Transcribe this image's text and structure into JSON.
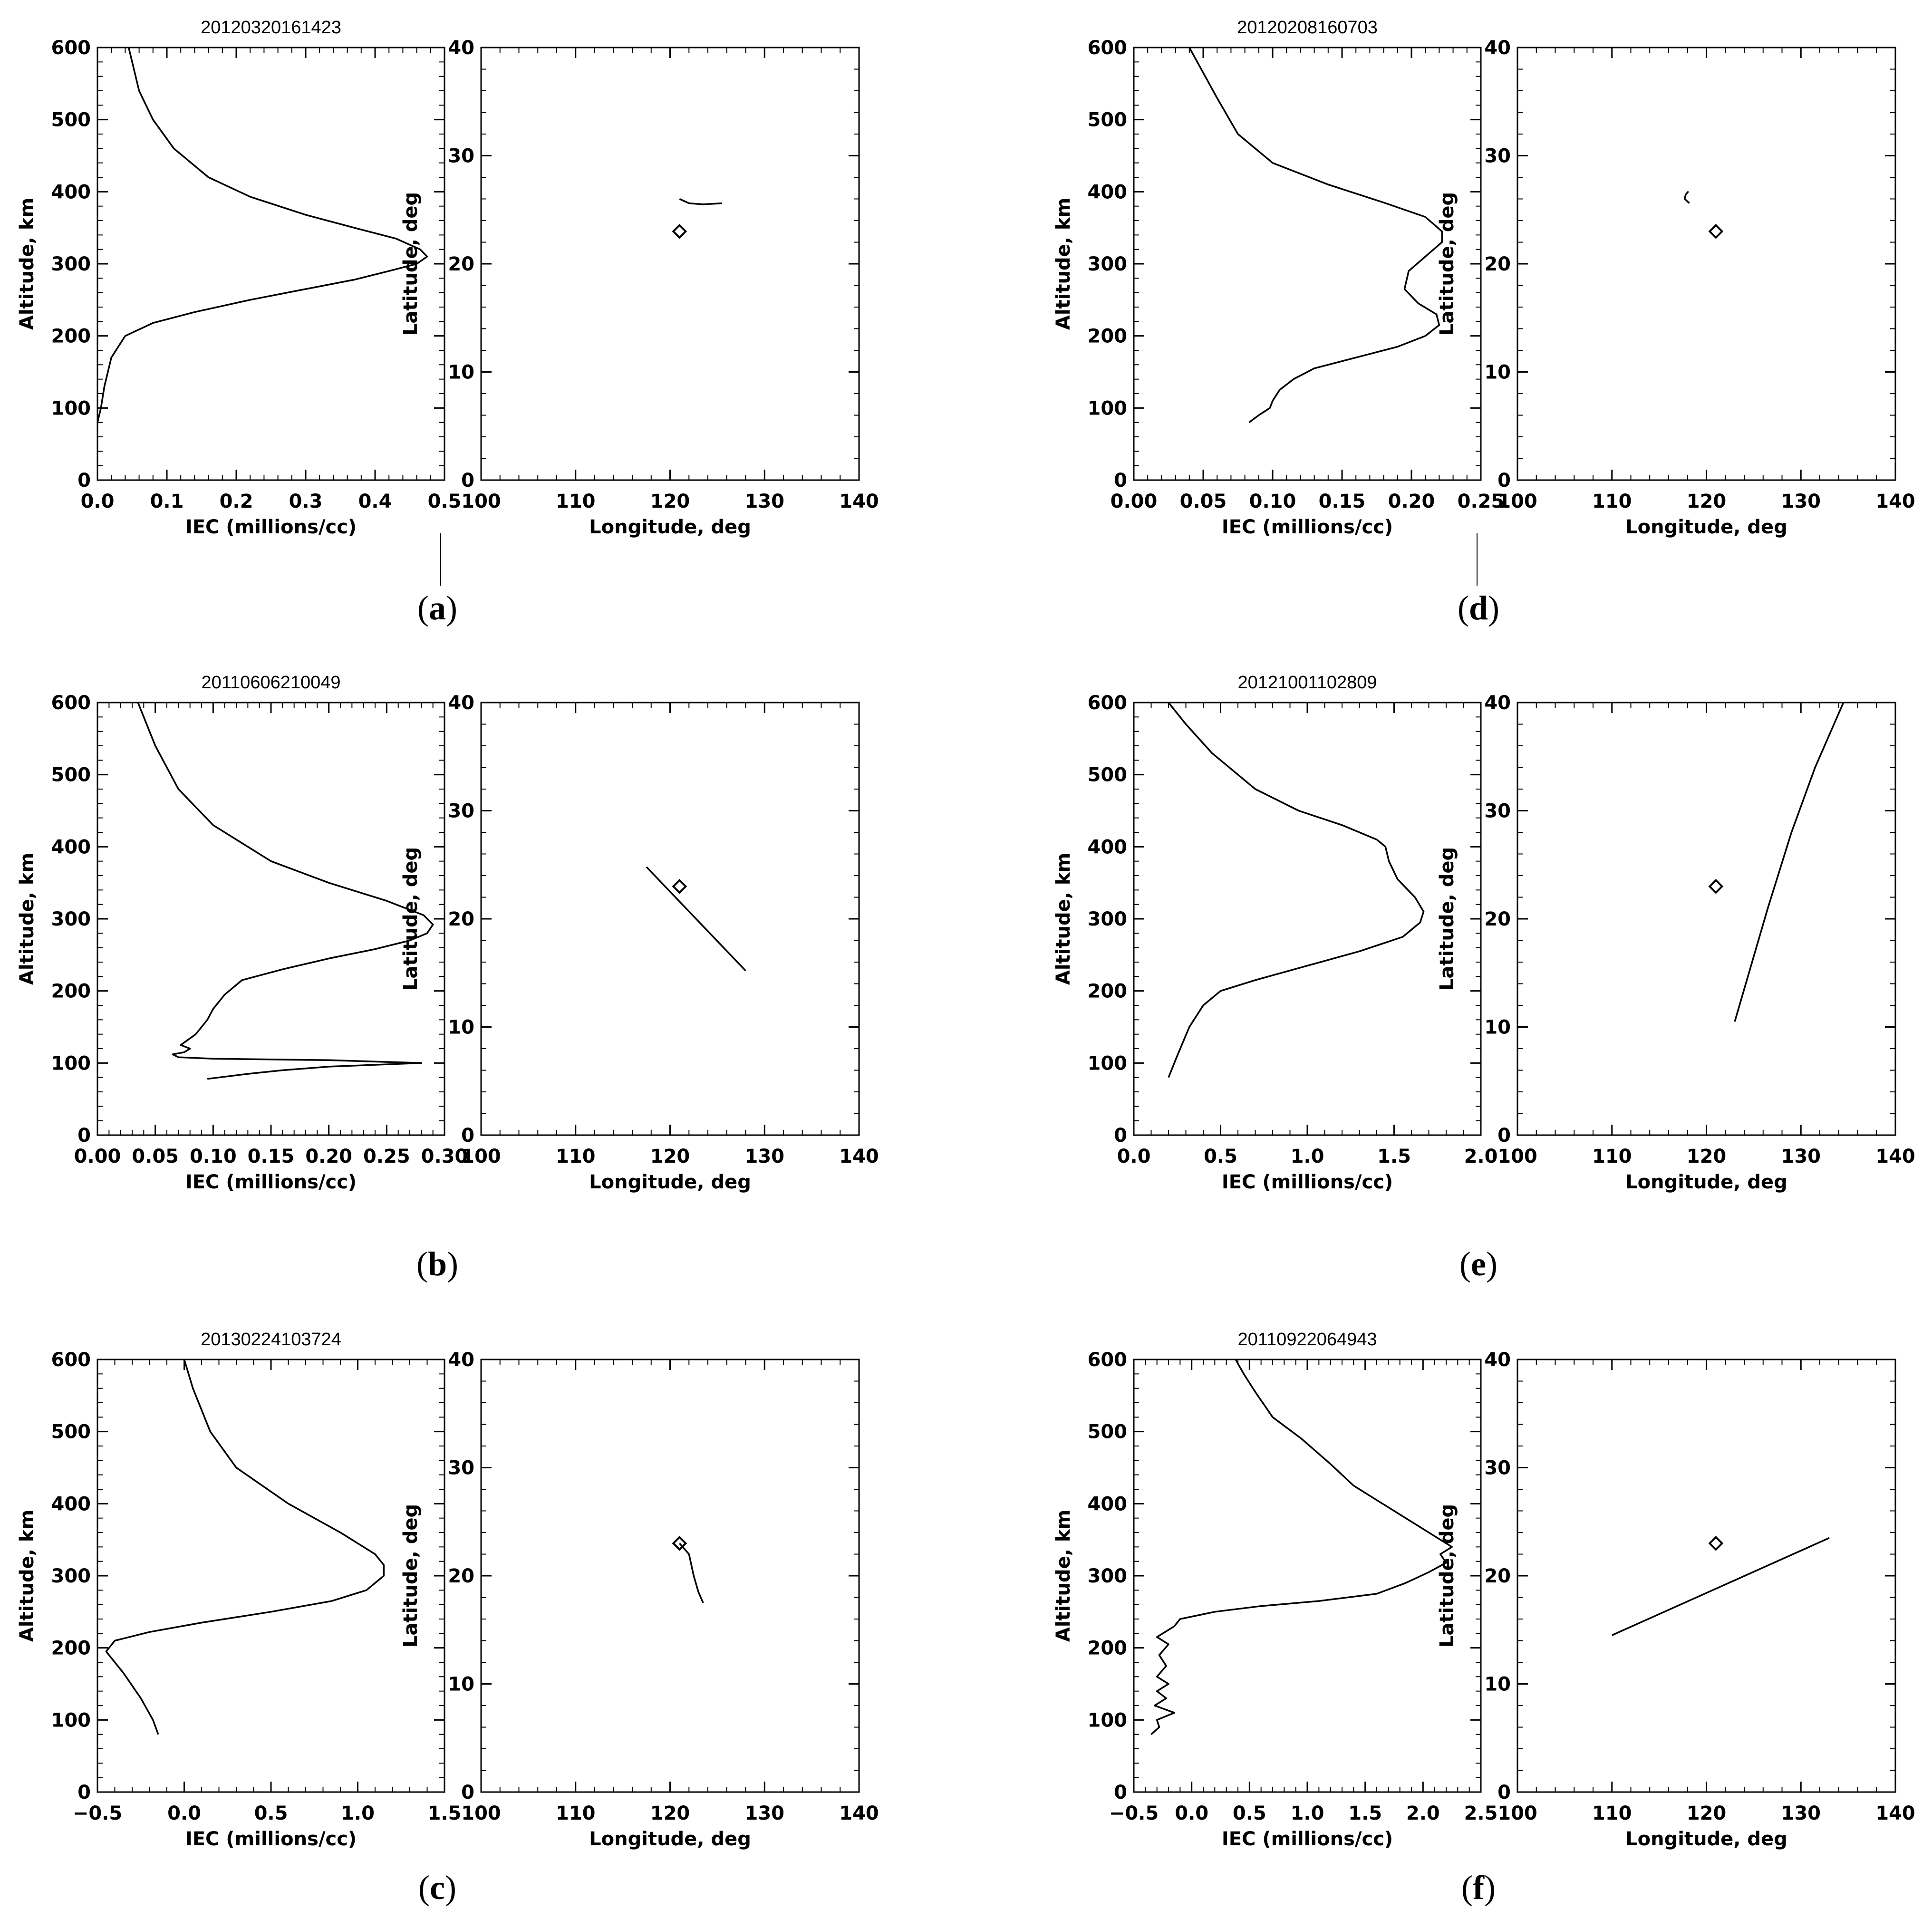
{
  "chart_data": [
    {
      "panel": "a",
      "type": "line",
      "title": "20120320161423",
      "profile": {
        "xlabel": "IEC (millions/cc)",
        "ylabel": "Altitude, km",
        "xlim": [
          0,
          0.5
        ],
        "ylim": [
          0,
          600
        ],
        "xticks": [
          "0.0",
          "0.1",
          "0.2",
          "0.3",
          "0.4",
          "0.5"
        ],
        "yticks": [
          "0",
          "100",
          "200",
          "300",
          "400",
          "500",
          "600"
        ],
        "points": [
          [
            0.0,
            80
          ],
          [
            0.005,
            100
          ],
          [
            0.01,
            130
          ],
          [
            0.02,
            170
          ],
          [
            0.04,
            200
          ],
          [
            0.08,
            218
          ],
          [
            0.14,
            233
          ],
          [
            0.22,
            250
          ],
          [
            0.3,
            265
          ],
          [
            0.37,
            278
          ],
          [
            0.42,
            290
          ],
          [
            0.46,
            300
          ],
          [
            0.475,
            310
          ],
          [
            0.465,
            320
          ],
          [
            0.43,
            335
          ],
          [
            0.37,
            350
          ],
          [
            0.3,
            368
          ],
          [
            0.22,
            393
          ],
          [
            0.16,
            420
          ],
          [
            0.11,
            460
          ],
          [
            0.08,
            500
          ],
          [
            0.06,
            540
          ],
          [
            0.045,
            600
          ]
        ]
      },
      "track": {
        "xlabel": "Longitude, deg",
        "ylabel": "Latitude, deg",
        "xlim": [
          100,
          140
        ],
        "ylim": [
          0,
          40
        ],
        "xticks": [
          "100",
          "110",
          "120",
          "130",
          "140"
        ],
        "yticks": [
          "0",
          "10",
          "20",
          "30",
          "40"
        ],
        "path": [
          [
            121,
            26
          ],
          [
            122,
            25.6
          ],
          [
            123.5,
            25.5
          ],
          [
            125.5,
            25.6
          ]
        ],
        "station": [
          121,
          23
        ]
      }
    },
    {
      "panel": "b",
      "type": "line",
      "title": "20110606210049",
      "profile": {
        "xlabel": "IEC (millions/cc)",
        "ylabel": "Altitude, km",
        "xlim": [
          0,
          0.3
        ],
        "ylim": [
          0,
          600
        ],
        "xticks": [
          "0.00",
          "0.05",
          "0.10",
          "0.15",
          "0.20",
          "0.25",
          "0.30"
        ],
        "yticks": [
          "0",
          "100",
          "200",
          "300",
          "400",
          "500",
          "600"
        ],
        "points": [
          [
            0.095,
            78
          ],
          [
            0.13,
            85
          ],
          [
            0.16,
            90
          ],
          [
            0.2,
            95
          ],
          [
            0.28,
            100
          ],
          [
            0.2,
            104
          ],
          [
            0.1,
            106
          ],
          [
            0.07,
            108
          ],
          [
            0.065,
            112
          ],
          [
            0.075,
            115
          ],
          [
            0.08,
            120
          ],
          [
            0.072,
            125
          ],
          [
            0.085,
            140
          ],
          [
            0.095,
            160
          ],
          [
            0.1,
            175
          ],
          [
            0.11,
            195
          ],
          [
            0.125,
            215
          ],
          [
            0.16,
            230
          ],
          [
            0.2,
            245
          ],
          [
            0.24,
            258
          ],
          [
            0.27,
            270
          ],
          [
            0.285,
            280
          ],
          [
            0.29,
            292
          ],
          [
            0.282,
            305
          ],
          [
            0.25,
            325
          ],
          [
            0.2,
            350
          ],
          [
            0.15,
            380
          ],
          [
            0.1,
            430
          ],
          [
            0.07,
            480
          ],
          [
            0.05,
            540
          ],
          [
            0.035,
            600
          ]
        ]
      },
      "track": {
        "xlabel": "Longitude, deg",
        "ylabel": "Latitude, deg",
        "xlim": [
          100,
          140
        ],
        "ylim": [
          0,
          40
        ],
        "xticks": [
          "100",
          "110",
          "120",
          "130",
          "140"
        ],
        "yticks": [
          "0",
          "10",
          "20",
          "30",
          "40"
        ],
        "path": [
          [
            117.5,
            24.8
          ],
          [
            128,
            15.2
          ]
        ],
        "station": [
          121,
          23
        ]
      }
    },
    {
      "panel": "c",
      "type": "line",
      "title": "20130224103724",
      "profile": {
        "xlabel": "IEC (millions/cc)",
        "ylabel": "Altitude, km",
        "xlim": [
          -0.5,
          1.5
        ],
        "ylim": [
          0,
          600
        ],
        "xticks": [
          "−0.5",
          "0.0",
          "0.5",
          "1.0",
          "1.5"
        ],
        "yticks": [
          "0",
          "100",
          "200",
          "300",
          "400",
          "500",
          "600"
        ],
        "points": [
          [
            -0.15,
            80
          ],
          [
            -0.18,
            100
          ],
          [
            -0.25,
            130
          ],
          [
            -0.35,
            165
          ],
          [
            -0.45,
            195
          ],
          [
            -0.4,
            210
          ],
          [
            -0.2,
            222
          ],
          [
            0.1,
            235
          ],
          [
            0.5,
            250
          ],
          [
            0.85,
            265
          ],
          [
            1.05,
            280
          ],
          [
            1.15,
            300
          ],
          [
            1.15,
            315
          ],
          [
            1.1,
            330
          ],
          [
            0.9,
            360
          ],
          [
            0.6,
            400
          ],
          [
            0.3,
            450
          ],
          [
            0.15,
            500
          ],
          [
            0.05,
            560
          ],
          [
            0.0,
            600
          ]
        ]
      },
      "track": {
        "xlabel": "Longitude, deg",
        "ylabel": "Latitude, deg",
        "xlim": [
          100,
          140
        ],
        "ylim": [
          0,
          40
        ],
        "xticks": [
          "100",
          "110",
          "120",
          "130",
          "140"
        ],
        "yticks": [
          "0",
          "10",
          "20",
          "30",
          "40"
        ],
        "path": [
          [
            121,
            23
          ],
          [
            122,
            22
          ],
          [
            122.5,
            20
          ],
          [
            123,
            18.5
          ],
          [
            123.5,
            17.5
          ]
        ],
        "station": [
          121,
          23
        ]
      }
    },
    {
      "panel": "d",
      "type": "line",
      "title": "20120208160703",
      "profile": {
        "xlabel": "IEC (millions/cc)",
        "ylabel": "Altitude, km",
        "xlim": [
          0,
          0.25
        ],
        "ylim": [
          0,
          600
        ],
        "xticks": [
          "0.00",
          "0.05",
          "0.10",
          "0.15",
          "0.20",
          "0.25"
        ],
        "yticks": [
          "0",
          "100",
          "200",
          "300",
          "400",
          "500",
          "600"
        ],
        "points": [
          [
            0.083,
            80
          ],
          [
            0.09,
            90
          ],
          [
            0.098,
            100
          ],
          [
            0.1,
            110
          ],
          [
            0.105,
            125
          ],
          [
            0.115,
            140
          ],
          [
            0.13,
            155
          ],
          [
            0.16,
            170
          ],
          [
            0.19,
            185
          ],
          [
            0.21,
            200
          ],
          [
            0.22,
            215
          ],
          [
            0.218,
            230
          ],
          [
            0.205,
            245
          ],
          [
            0.195,
            265
          ],
          [
            0.198,
            290
          ],
          [
            0.21,
            310
          ],
          [
            0.222,
            330
          ],
          [
            0.222,
            345
          ],
          [
            0.21,
            365
          ],
          [
            0.18,
            385
          ],
          [
            0.14,
            410
          ],
          [
            0.1,
            440
          ],
          [
            0.075,
            480
          ],
          [
            0.06,
            530
          ],
          [
            0.04,
            600
          ]
        ]
      },
      "track": {
        "xlabel": "Longitude, deg",
        "ylabel": "Latitude, deg",
        "xlim": [
          100,
          140
        ],
        "ylim": [
          0,
          40
        ],
        "xticks": [
          "100",
          "110",
          "120",
          "130",
          "140"
        ],
        "yticks": [
          "0",
          "10",
          "20",
          "30",
          "40"
        ],
        "path": [
          [
            118.2,
            25.6
          ],
          [
            117.7,
            26
          ],
          [
            117.8,
            26.4
          ],
          [
            118.1,
            26.7
          ]
        ],
        "station": [
          121,
          23
        ]
      }
    },
    {
      "panel": "e",
      "type": "line",
      "title": "20121001102809",
      "profile": {
        "xlabel": "IEC (millions/cc)",
        "ylabel": "Altitude, km",
        "xlim": [
          0,
          2.0
        ],
        "ylim": [
          0,
          600
        ],
        "xticks": [
          "0.0",
          "0.5",
          "1.0",
          "1.5",
          "2.0"
        ],
        "yticks": [
          "0",
          "100",
          "200",
          "300",
          "400",
          "500",
          "600"
        ],
        "points": [
          [
            0.2,
            80
          ],
          [
            0.25,
            110
          ],
          [
            0.32,
            150
          ],
          [
            0.4,
            180
          ],
          [
            0.5,
            200
          ],
          [
            0.7,
            215
          ],
          [
            1.0,
            235
          ],
          [
            1.3,
            255
          ],
          [
            1.55,
            275
          ],
          [
            1.65,
            295
          ],
          [
            1.67,
            310
          ],
          [
            1.62,
            330
          ],
          [
            1.52,
            355
          ],
          [
            1.47,
            380
          ],
          [
            1.45,
            400
          ],
          [
            1.4,
            410
          ],
          [
            1.2,
            430
          ],
          [
            0.95,
            450
          ],
          [
            0.7,
            480
          ],
          [
            0.45,
            530
          ],
          [
            0.3,
            570
          ],
          [
            0.2,
            600
          ]
        ]
      },
      "track": {
        "xlabel": "Longitude, deg",
        "ylabel": "Latitude, deg",
        "xlim": [
          100,
          140
        ],
        "ylim": [
          0,
          40
        ],
        "xticks": [
          "100",
          "110",
          "120",
          "130",
          "140"
        ],
        "yticks": [
          "0",
          "10",
          "20",
          "30",
          "40"
        ],
        "path": [
          [
            123,
            10.5
          ],
          [
            124.5,
            15
          ],
          [
            126.5,
            21
          ],
          [
            129,
            28
          ],
          [
            131.5,
            34
          ],
          [
            134.5,
            40
          ]
        ],
        "station": [
          121,
          23
        ]
      }
    },
    {
      "panel": "f",
      "type": "line",
      "title": "20110922064943",
      "profile": {
        "xlabel": "IEC (millions/cc)",
        "ylabel": "Altitude, km",
        "xlim": [
          -0.5,
          2.5
        ],
        "ylim": [
          0,
          600
        ],
        "xticks": [
          "−0.5",
          "0.0",
          "0.5",
          "1.0",
          "1.5",
          "2.0",
          "2.5"
        ],
        "yticks": [
          "0",
          "100",
          "200",
          "300",
          "400",
          "500",
          "600"
        ],
        "points": [
          [
            -0.35,
            80
          ],
          [
            -0.28,
            90
          ],
          [
            -0.3,
            100
          ],
          [
            -0.15,
            110
          ],
          [
            -0.32,
            120
          ],
          [
            -0.22,
            130
          ],
          [
            -0.3,
            140
          ],
          [
            -0.2,
            150
          ],
          [
            -0.3,
            160
          ],
          [
            -0.22,
            175
          ],
          [
            -0.28,
            190
          ],
          [
            -0.2,
            205
          ],
          [
            -0.3,
            215
          ],
          [
            -0.15,
            230
          ],
          [
            -0.1,
            240
          ],
          [
            0.2,
            250
          ],
          [
            0.6,
            258
          ],
          [
            1.1,
            265
          ],
          [
            1.6,
            275
          ],
          [
            1.85,
            290
          ],
          [
            2.05,
            305
          ],
          [
            2.2,
            318
          ],
          [
            2.15,
            330
          ],
          [
            2.25,
            340
          ],
          [
            2.1,
            355
          ],
          [
            2.0,
            365
          ],
          [
            1.8,
            385
          ],
          [
            1.6,
            405
          ],
          [
            1.4,
            425
          ],
          [
            1.2,
            455
          ],
          [
            0.95,
            490
          ],
          [
            0.7,
            520
          ],
          [
            0.55,
            555
          ],
          [
            0.45,
            580
          ],
          [
            0.38,
            600
          ]
        ]
      },
      "track": {
        "xlabel": "Longitude, deg",
        "ylabel": "Latitude, deg",
        "xlim": [
          100,
          140
        ],
        "ylim": [
          0,
          40
        ],
        "xticks": [
          "100",
          "110",
          "120",
          "130",
          "140"
        ],
        "yticks": [
          "0",
          "10",
          "20",
          "30",
          "40"
        ],
        "path": [
          [
            110,
            14.5
          ],
          [
            133,
            23.5
          ]
        ],
        "station": [
          121,
          23
        ]
      }
    }
  ]
}
